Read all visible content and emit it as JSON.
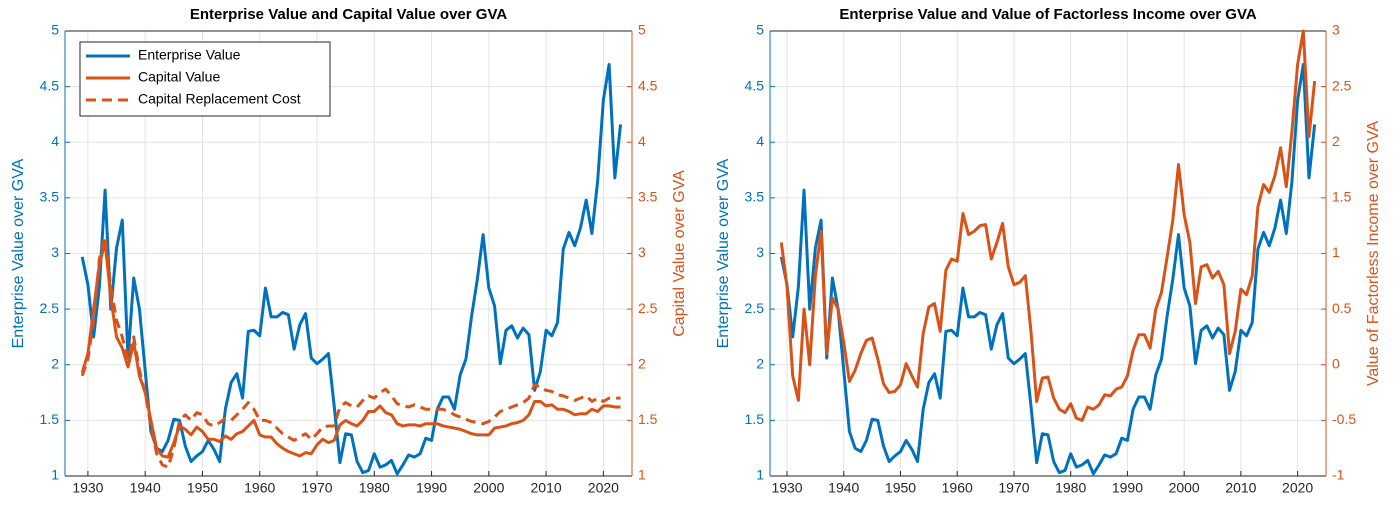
{
  "chart_data": [
    {
      "type": "line",
      "title": "Enterprise Value and Capital Value over GVA",
      "ylabel": "Enterprise Value over GVA",
      "y2label": "Capital Value over GVA",
      "ylabel_color": "#0072BD",
      "y2label_color": "#D95319",
      "grid": true,
      "legend": "upper left",
      "xlim": [
        1926,
        2025
      ],
      "xticks": [
        1930,
        1940,
        1950,
        1960,
        1970,
        1980,
        1990,
        2000,
        2010,
        2020
      ],
      "ylim": [
        1,
        5
      ],
      "yticks": [
        1,
        1.5,
        2,
        2.5,
        3,
        3.5,
        4,
        4.5,
        5
      ],
      "y2lim": [
        1,
        5
      ],
      "y2ticks": [
        1,
        1.5,
        2,
        2.5,
        3,
        3.5,
        4,
        4.5,
        5
      ],
      "x": [
        1929,
        1930,
        1931,
        1932,
        1933,
        1934,
        1935,
        1936,
        1937,
        1938,
        1939,
        1940,
        1941,
        1942,
        1943,
        1944,
        1945,
        1946,
        1947,
        1948,
        1949,
        1950,
        1951,
        1952,
        1953,
        1954,
        1955,
        1956,
        1957,
        1958,
        1959,
        1960,
        1961,
        1962,
        1963,
        1964,
        1965,
        1966,
        1967,
        1968,
        1969,
        1970,
        1971,
        1972,
        1973,
        1974,
        1975,
        1976,
        1977,
        1978,
        1979,
        1980,
        1981,
        1982,
        1983,
        1984,
        1985,
        1986,
        1987,
        1988,
        1989,
        1990,
        1991,
        1992,
        1993,
        1994,
        1995,
        1996,
        1997,
        1998,
        1999,
        2000,
        2001,
        2002,
        2003,
        2004,
        2005,
        2006,
        2007,
        2008,
        2009,
        2010,
        2011,
        2012,
        2013,
        2014,
        2015,
        2016,
        2017,
        2018,
        2019,
        2020,
        2021,
        2022,
        2023
      ],
      "series": [
        {
          "name": "Enterprise Value",
          "color": "#0072BD",
          "style": "solid",
          "axis": "y",
          "values": [
            2.97,
            2.72,
            2.25,
            2.7,
            3.57,
            2.5,
            3.05,
            3.3,
            2.06,
            2.78,
            2.5,
            1.95,
            1.4,
            1.25,
            1.22,
            1.32,
            1.51,
            1.5,
            1.27,
            1.13,
            1.18,
            1.22,
            1.32,
            1.24,
            1.13,
            1.6,
            1.84,
            1.92,
            1.7,
            2.3,
            2.31,
            2.26,
            2.69,
            2.43,
            2.43,
            2.47,
            2.45,
            2.14,
            2.36,
            2.46,
            2.06,
            2.01,
            2.05,
            2.1,
            1.63,
            1.12,
            1.38,
            1.37,
            1.13,
            1.03,
            1.05,
            1.2,
            1.08,
            1.1,
            1.14,
            1.02,
            1.1,
            1.19,
            1.17,
            1.2,
            1.34,
            1.32,
            1.6,
            1.71,
            1.71,
            1.6,
            1.91,
            2.05,
            2.44,
            2.77,
            3.17,
            2.69,
            2.53,
            2.01,
            2.31,
            2.35,
            2.24,
            2.33,
            2.27,
            1.77,
            1.94,
            2.31,
            2.26,
            2.38,
            3.04,
            3.19,
            3.07,
            3.23,
            3.48,
            3.18,
            3.65,
            4.38,
            4.7,
            3.68,
            4.16
          ]
        },
        {
          "name": "Capital Value",
          "color": "#D95319",
          "style": "solid",
          "axis": "y2",
          "values": [
            1.93,
            2.1,
            2.5,
            2.9,
            3.1,
            2.6,
            2.25,
            2.15,
            1.98,
            2.2,
            1.9,
            1.75,
            1.5,
            1.25,
            1.18,
            1.17,
            1.3,
            1.45,
            1.42,
            1.37,
            1.44,
            1.4,
            1.33,
            1.33,
            1.31,
            1.36,
            1.33,
            1.38,
            1.4,
            1.45,
            1.5,
            1.37,
            1.35,
            1.35,
            1.29,
            1.25,
            1.22,
            1.2,
            1.18,
            1.21,
            1.2,
            1.28,
            1.33,
            1.3,
            1.32,
            1.46,
            1.5,
            1.47,
            1.45,
            1.5,
            1.58,
            1.58,
            1.63,
            1.57,
            1.55,
            1.47,
            1.45,
            1.46,
            1.46,
            1.45,
            1.47,
            1.47,
            1.47,
            1.45,
            1.44,
            1.43,
            1.42,
            1.4,
            1.38,
            1.37,
            1.37,
            1.37,
            1.43,
            1.44,
            1.45,
            1.47,
            1.48,
            1.5,
            1.55,
            1.67,
            1.67,
            1.63,
            1.64,
            1.6,
            1.6,
            1.58,
            1.55,
            1.56,
            1.56,
            1.6,
            1.58,
            1.63,
            1.63,
            1.62,
            1.62
          ]
        },
        {
          "name": "Capital Replacement Cost",
          "color": "#D95319",
          "style": "dashed",
          "axis": "y2",
          "values": [
            1.9,
            2.05,
            2.4,
            2.95,
            3.15,
            2.7,
            2.4,
            2.25,
            2.05,
            2.25,
            1.95,
            1.75,
            1.45,
            1.2,
            1.1,
            1.08,
            1.25,
            1.5,
            1.55,
            1.5,
            1.57,
            1.55,
            1.47,
            1.45,
            1.48,
            1.52,
            1.5,
            1.55,
            1.6,
            1.66,
            1.6,
            1.5,
            1.5,
            1.48,
            1.43,
            1.38,
            1.35,
            1.32,
            1.35,
            1.38,
            1.33,
            1.38,
            1.44,
            1.45,
            1.45,
            1.62,
            1.66,
            1.63,
            1.62,
            1.68,
            1.72,
            1.7,
            1.75,
            1.78,
            1.72,
            1.65,
            1.63,
            1.62,
            1.64,
            1.62,
            1.6,
            1.6,
            1.6,
            1.6,
            1.58,
            1.55,
            1.53,
            1.51,
            1.49,
            1.48,
            1.47,
            1.49,
            1.53,
            1.58,
            1.6,
            1.62,
            1.64,
            1.66,
            1.7,
            1.82,
            1.8,
            1.77,
            1.76,
            1.73,
            1.72,
            1.7,
            1.68,
            1.7,
            1.72,
            1.67,
            1.7,
            1.67,
            1.7,
            1.7,
            1.7
          ]
        }
      ]
    },
    {
      "type": "line",
      "title": "Enterprise Value and Value of Factorless Income over GVA",
      "ylabel": "Enterprise Value over GVA",
      "y2label": "Value of Factorless Income over GVA",
      "ylabel_color": "#0072BD",
      "y2label_color": "#D95319",
      "grid": true,
      "xlim": [
        1927,
        2025
      ],
      "xticks": [
        1930,
        1940,
        1950,
        1960,
        1970,
        1980,
        1990,
        2000,
        2010,
        2020
      ],
      "ylim": [
        1,
        5
      ],
      "yticks": [
        1,
        1.5,
        2,
        2.5,
        3,
        3.5,
        4,
        4.5,
        5
      ],
      "y2lim": [
        -1,
        3
      ],
      "y2ticks": [
        -1,
        -0.5,
        0,
        0.5,
        1,
        1.5,
        2,
        2.5,
        3
      ],
      "x": [
        1929,
        1930,
        1931,
        1932,
        1933,
        1934,
        1935,
        1936,
        1937,
        1938,
        1939,
        1940,
        1941,
        1942,
        1943,
        1944,
        1945,
        1946,
        1947,
        1948,
        1949,
        1950,
        1951,
        1952,
        1953,
        1954,
        1955,
        1956,
        1957,
        1958,
        1959,
        1960,
        1961,
        1962,
        1963,
        1964,
        1965,
        1966,
        1967,
        1968,
        1969,
        1970,
        1971,
        1972,
        1973,
        1974,
        1975,
        1976,
        1977,
        1978,
        1979,
        1980,
        1981,
        1982,
        1983,
        1984,
        1985,
        1986,
        1987,
        1988,
        1989,
        1990,
        1991,
        1992,
        1993,
        1994,
        1995,
        1996,
        1997,
        1998,
        1999,
        2000,
        2001,
        2002,
        2003,
        2004,
        2005,
        2006,
        2007,
        2008,
        2009,
        2010,
        2011,
        2012,
        2013,
        2014,
        2015,
        2016,
        2017,
        2018,
        2019,
        2020,
        2021,
        2022,
        2023
      ],
      "series": [
        {
          "color": "#0072BD",
          "style": "solid",
          "axis": "y",
          "values": [
            2.97,
            2.72,
            2.25,
            2.7,
            3.57,
            2.5,
            3.05,
            3.3,
            2.06,
            2.78,
            2.5,
            1.95,
            1.4,
            1.25,
            1.22,
            1.32,
            1.51,
            1.5,
            1.27,
            1.13,
            1.18,
            1.22,
            1.32,
            1.24,
            1.13,
            1.6,
            1.84,
            1.92,
            1.7,
            2.3,
            2.31,
            2.26,
            2.69,
            2.43,
            2.43,
            2.47,
            2.45,
            2.14,
            2.36,
            2.46,
            2.06,
            2.01,
            2.05,
            2.1,
            1.63,
            1.12,
            1.38,
            1.37,
            1.13,
            1.03,
            1.05,
            1.2,
            1.08,
            1.1,
            1.14,
            1.02,
            1.1,
            1.19,
            1.17,
            1.2,
            1.34,
            1.32,
            1.6,
            1.71,
            1.71,
            1.6,
            1.91,
            2.05,
            2.44,
            2.77,
            3.17,
            2.69,
            2.53,
            2.01,
            2.31,
            2.35,
            2.24,
            2.33,
            2.27,
            1.77,
            1.94,
            2.31,
            2.26,
            2.38,
            3.04,
            3.19,
            3.07,
            3.23,
            3.48,
            3.18,
            3.65,
            4.38,
            4.7,
            3.68,
            4.16
          ]
        },
        {
          "color": "#D95319",
          "style": "solid",
          "axis": "y2",
          "values": [
            1.1,
            0.7,
            -0.1,
            -0.32,
            0.5,
            0.0,
            0.8,
            1.2,
            0.1,
            0.6,
            0.5,
            0.2,
            -0.15,
            -0.05,
            0.1,
            0.22,
            0.24,
            0.05,
            -0.17,
            -0.25,
            -0.24,
            -0.18,
            0.01,
            -0.1,
            -0.2,
            0.28,
            0.52,
            0.55,
            0.3,
            0.85,
            0.95,
            0.93,
            1.36,
            1.17,
            1.2,
            1.25,
            1.26,
            0.95,
            1.1,
            1.27,
            0.88,
            0.72,
            0.74,
            0.8,
            0.3,
            -0.33,
            -0.12,
            -0.11,
            -0.3,
            -0.4,
            -0.43,
            -0.35,
            -0.48,
            -0.5,
            -0.38,
            -0.4,
            -0.36,
            -0.27,
            -0.28,
            -0.22,
            -0.2,
            -0.1,
            0.13,
            0.27,
            0.27,
            0.15,
            0.5,
            0.65,
            0.97,
            1.3,
            1.8,
            1.35,
            1.1,
            0.55,
            0.88,
            0.9,
            0.78,
            0.84,
            0.72,
            0.1,
            0.3,
            0.68,
            0.63,
            0.8,
            1.42,
            1.62,
            1.55,
            1.7,
            1.95,
            1.6,
            2.1,
            2.7,
            3.0,
            2.05,
            2.55
          ]
        }
      ]
    }
  ]
}
